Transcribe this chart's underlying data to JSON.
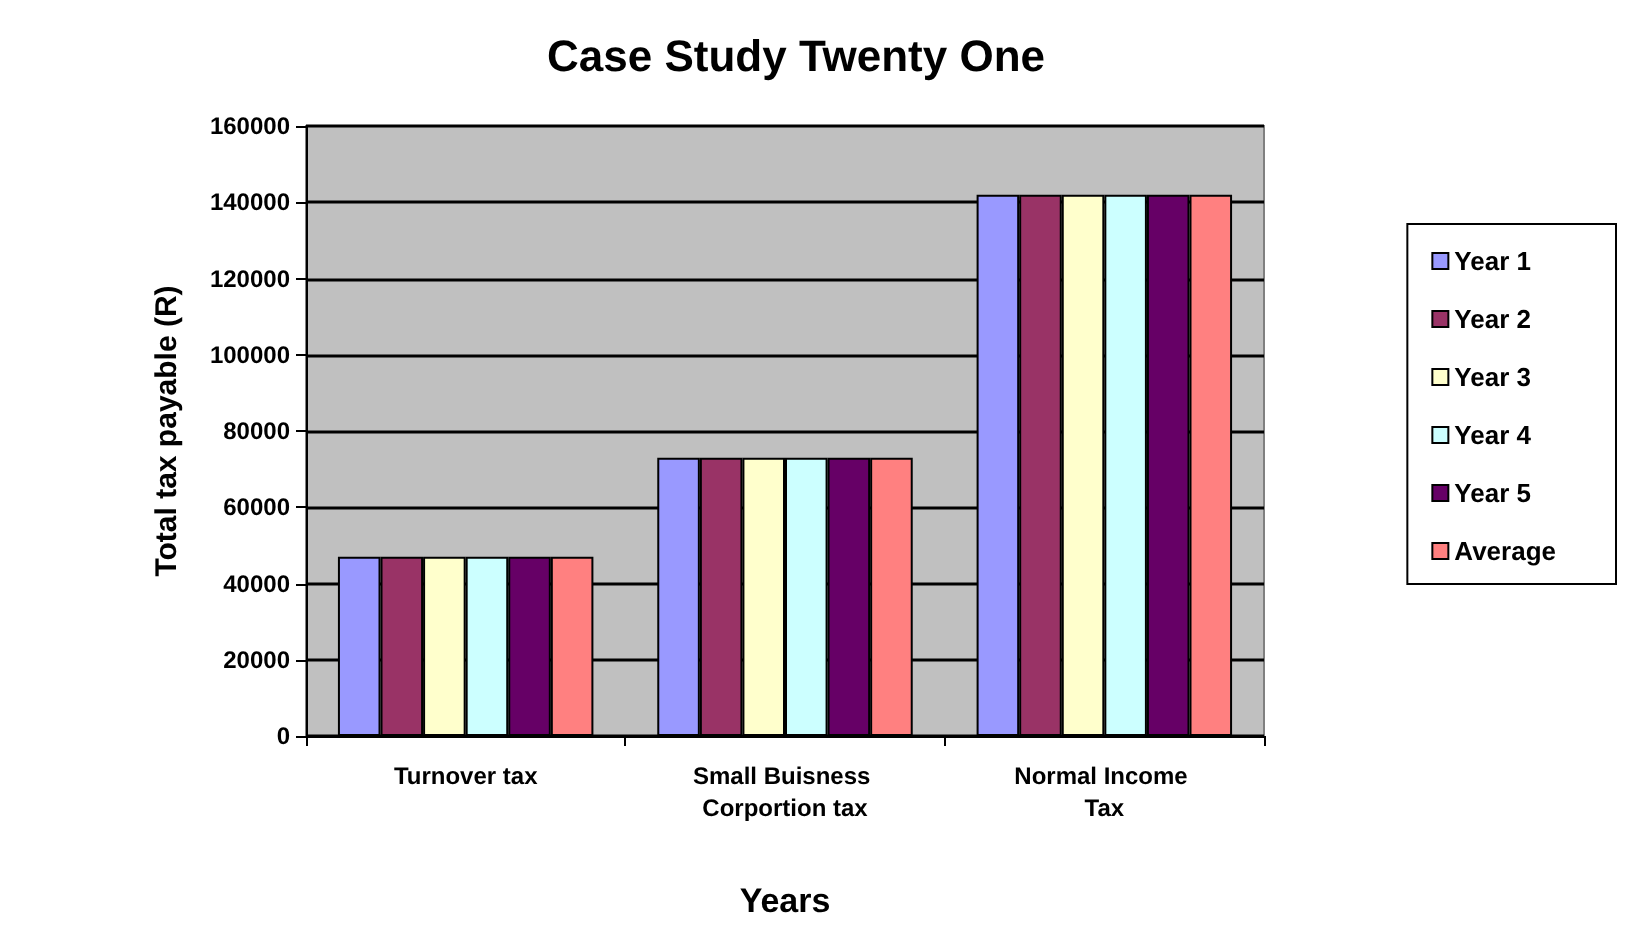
{
  "chart_data": {
    "type": "bar",
    "title": "Case Study Twenty One",
    "xlabel": "Years",
    "ylabel": "Total tax payable (R)",
    "categories": [
      "Turnover tax",
      "Small Buisness Corportion tax",
      "Normal Income Tax"
    ],
    "series": [
      {
        "name": "Year 1",
        "color": "#9999ff",
        "values": [
          47000,
          73000,
          142000
        ]
      },
      {
        "name": "Year 2",
        "color": "#993366",
        "values": [
          47000,
          73000,
          142000
        ]
      },
      {
        "name": "Year 3",
        "color": "#ffffcc",
        "values": [
          47000,
          73000,
          142000
        ]
      },
      {
        "name": "Year 4",
        "color": "#ccffff",
        "values": [
          47000,
          73000,
          142000
        ]
      },
      {
        "name": "Year 5",
        "color": "#660066",
        "values": [
          47000,
          73000,
          142000
        ]
      },
      {
        "name": "Average",
        "color": "#ff8080",
        "values": [
          47000,
          73000,
          142000
        ]
      }
    ],
    "ylim": [
      0,
      160000
    ],
    "yticks": [
      0,
      20000,
      40000,
      60000,
      80000,
      100000,
      120000,
      140000,
      160000
    ],
    "grid": "y",
    "legend": "right"
  }
}
